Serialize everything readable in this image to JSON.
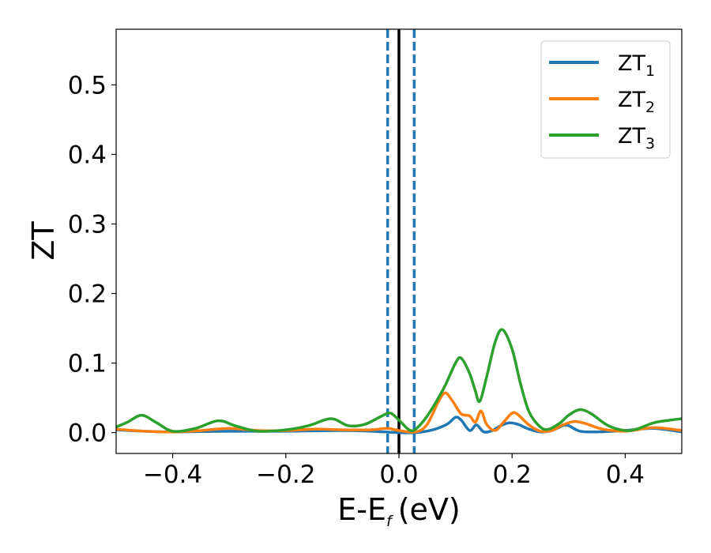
{
  "chart_data": {
    "type": "line",
    "title": "",
    "xlabel": "E-E",
    "xlabel_subscript": "f",
    "xlabel_unit": "(eV)",
    "ylabel": "ZT",
    "xlim": [
      -0.5,
      0.5
    ],
    "ylim": [
      -0.03,
      0.58
    ],
    "x_ticks": [
      -0.4,
      -0.2,
      0.0,
      0.2,
      0.4
    ],
    "x_tick_labels": [
      "−0.4",
      "−0.2",
      "0.0",
      "0.2",
      "0.4"
    ],
    "y_ticks": [
      0.0,
      0.1,
      0.2,
      0.3,
      0.4,
      0.5
    ],
    "y_tick_labels": [
      "0.0",
      "0.1",
      "0.2",
      "0.3",
      "0.4",
      "0.5"
    ],
    "grid": false,
    "legend_position": "top-right",
    "vertical_lines": [
      {
        "x": -0.02,
        "style": "dashed",
        "color": "#1f77b4"
      },
      {
        "x": 0.0,
        "style": "solid",
        "color": "#000000"
      },
      {
        "x": 0.027,
        "style": "dashed",
        "color": "#1f77b4"
      }
    ],
    "series": [
      {
        "name": "ZT",
        "subscript": "1",
        "color": "#1f77b4",
        "points": [
          [
            -0.5,
            0.004
          ],
          [
            -0.45,
            0.002
          ],
          [
            -0.4,
            0.001
          ],
          [
            -0.3,
            0.002
          ],
          [
            -0.2,
            0.002
          ],
          [
            -0.1,
            0.003
          ],
          [
            -0.05,
            0.002
          ],
          [
            0.0,
            0.0
          ],
          [
            0.03,
            0.0
          ],
          [
            0.06,
            0.004
          ],
          [
            0.085,
            0.012
          ],
          [
            0.1,
            0.022
          ],
          [
            0.11,
            0.018
          ],
          [
            0.125,
            0.003
          ],
          [
            0.137,
            0.011
          ],
          [
            0.15,
            0.001
          ],
          [
            0.165,
            0.003
          ],
          [
            0.18,
            0.01
          ],
          [
            0.195,
            0.014
          ],
          [
            0.21,
            0.012
          ],
          [
            0.23,
            0.005
          ],
          [
            0.25,
            0.001
          ],
          [
            0.27,
            0.003
          ],
          [
            0.29,
            0.01
          ],
          [
            0.3,
            0.01
          ],
          [
            0.32,
            0.002
          ],
          [
            0.35,
            0.001
          ],
          [
            0.4,
            0.003
          ],
          [
            0.45,
            0.006
          ],
          [
            0.5,
            0.001
          ]
        ]
      },
      {
        "name": "ZT",
        "subscript": "2",
        "color": "#ff7f0e",
        "points": [
          [
            -0.5,
            0.005
          ],
          [
            -0.45,
            0.002
          ],
          [
            -0.4,
            0.001
          ],
          [
            -0.35,
            0.003
          ],
          [
            -0.3,
            0.006
          ],
          [
            -0.25,
            0.003
          ],
          [
            -0.2,
            0.003
          ],
          [
            -0.15,
            0.005
          ],
          [
            -0.1,
            0.004
          ],
          [
            -0.05,
            0.004
          ],
          [
            -0.02,
            0.006
          ],
          [
            0.0,
            0.003
          ],
          [
            0.03,
            0.001
          ],
          [
            0.05,
            0.012
          ],
          [
            0.07,
            0.045
          ],
          [
            0.082,
            0.057
          ],
          [
            0.095,
            0.045
          ],
          [
            0.11,
            0.027
          ],
          [
            0.125,
            0.024
          ],
          [
            0.135,
            0.015
          ],
          [
            0.145,
            0.031
          ],
          [
            0.155,
            0.012
          ],
          [
            0.17,
            0.003
          ],
          [
            0.185,
            0.015
          ],
          [
            0.2,
            0.028
          ],
          [
            0.21,
            0.026
          ],
          [
            0.23,
            0.011
          ],
          [
            0.25,
            0.002
          ],
          [
            0.27,
            0.003
          ],
          [
            0.29,
            0.011
          ],
          [
            0.31,
            0.016
          ],
          [
            0.33,
            0.013
          ],
          [
            0.36,
            0.005
          ],
          [
            0.4,
            0.002
          ],
          [
            0.45,
            0.007
          ],
          [
            0.5,
            0.003
          ]
        ]
      },
      {
        "name": "ZT",
        "subscript": "3",
        "color": "#2ca02c",
        "points": [
          [
            -0.5,
            0.008
          ],
          [
            -0.48,
            0.015
          ],
          [
            -0.455,
            0.025
          ],
          [
            -0.43,
            0.015
          ],
          [
            -0.4,
            0.002
          ],
          [
            -0.36,
            0.006
          ],
          [
            -0.32,
            0.017
          ],
          [
            -0.29,
            0.01
          ],
          [
            -0.25,
            0.002
          ],
          [
            -0.2,
            0.004
          ],
          [
            -0.16,
            0.01
          ],
          [
            -0.12,
            0.02
          ],
          [
            -0.09,
            0.01
          ],
          [
            -0.06,
            0.012
          ],
          [
            -0.03,
            0.024
          ],
          [
            -0.015,
            0.028
          ],
          [
            0.0,
            0.018
          ],
          [
            0.02,
            0.003
          ],
          [
            0.035,
            0.009
          ],
          [
            0.055,
            0.03
          ],
          [
            0.08,
            0.065
          ],
          [
            0.1,
            0.1
          ],
          [
            0.11,
            0.107
          ],
          [
            0.125,
            0.085
          ],
          [
            0.135,
            0.06
          ],
          [
            0.143,
            0.045
          ],
          [
            0.155,
            0.08
          ],
          [
            0.17,
            0.13
          ],
          [
            0.183,
            0.148
          ],
          [
            0.2,
            0.12
          ],
          [
            0.215,
            0.07
          ],
          [
            0.23,
            0.03
          ],
          [
            0.25,
            0.008
          ],
          [
            0.265,
            0.005
          ],
          [
            0.285,
            0.014
          ],
          [
            0.3,
            0.025
          ],
          [
            0.32,
            0.033
          ],
          [
            0.34,
            0.027
          ],
          [
            0.37,
            0.01
          ],
          [
            0.4,
            0.003
          ],
          [
            0.42,
            0.005
          ],
          [
            0.45,
            0.014
          ],
          [
            0.48,
            0.018
          ],
          [
            0.5,
            0.02
          ]
        ]
      }
    ]
  }
}
